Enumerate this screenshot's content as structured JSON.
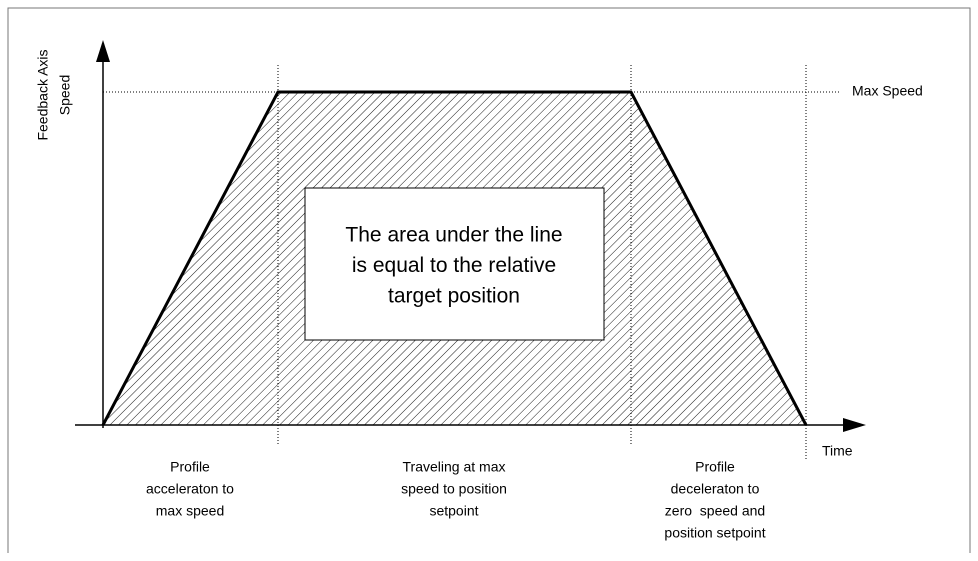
{
  "y_axis_label": [
    "Feedback Axis",
    "Speed"
  ],
  "max_speed_label": "Max Speed",
  "x_axis_label": "Time",
  "center_note": [
    "The area under the line",
    "is equal to the relative",
    "target position"
  ],
  "phases": [
    {
      "lines": [
        "Profile",
        "acceleraton to",
        "max speed"
      ]
    },
    {
      "lines": [
        "Traveling at max",
        "speed to position",
        "setpoint"
      ]
    },
    {
      "lines": [
        "Profile",
        "deceleraton to",
        "zero  speed and",
        "position setpoint"
      ]
    }
  ]
}
